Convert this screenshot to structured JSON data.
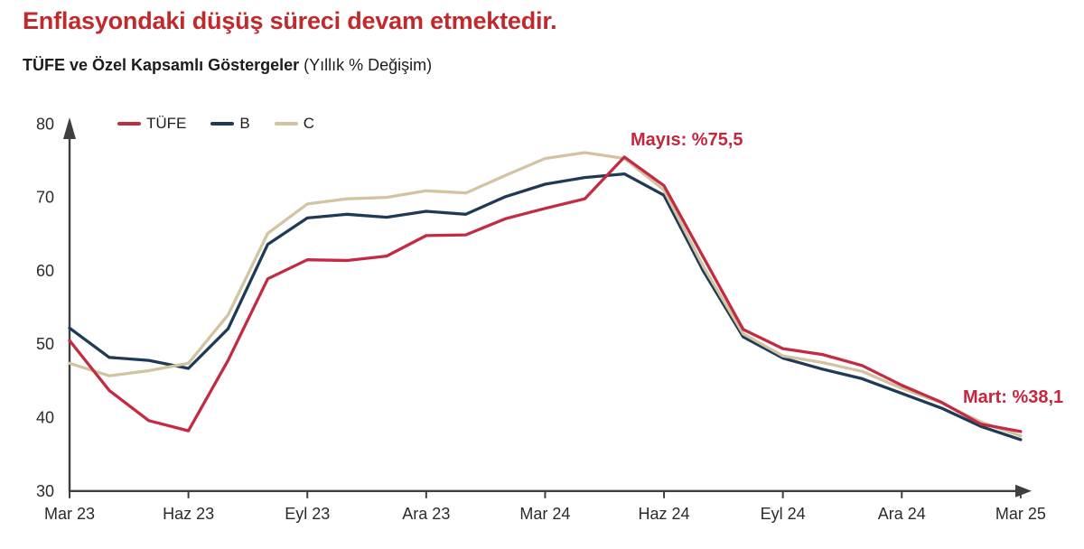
{
  "header": {
    "title": "Enflasyondaki düşüş süreci devam etmektedir.",
    "subtitle_bold": "TÜFE ve Özel Kapsamlı Göstergeler",
    "subtitle_note": " (Yıllık % Değişim)"
  },
  "colors": {
    "title_red": "#c02a2c",
    "annotation_red": "#c4273d",
    "tufe_red": "#c22b42",
    "b_navy": "#1e3a57",
    "c_tan": "#d3c4a1",
    "axis": "#3f3f3f",
    "axis_text": "#2b2b2b"
  },
  "chart_data": {
    "type": "line",
    "title": "TÜFE ve Özel Kapsamlı Göstergeler (Yıllık % Değişim)",
    "n_points": 25,
    "x_tick_positions": [
      0,
      3,
      6,
      9,
      12,
      15,
      18,
      21,
      24
    ],
    "x_tick_labels": [
      "Mar 23",
      "Haz 23",
      "Eyl 23",
      "Ara 23",
      "Mar 24",
      "Haz 24",
      "Eyl 24",
      "Ara 24",
      "Mar 25"
    ],
    "ylim": [
      30,
      80
    ],
    "y_ticks": [
      30,
      40,
      50,
      60,
      70,
      80
    ],
    "grid": false,
    "legend_position": "top-left",
    "series": [
      {
        "name": "TÜFE",
        "color": "#c22b42",
        "values": [
          50.5,
          43.7,
          39.6,
          38.2,
          47.8,
          58.9,
          61.5,
          61.4,
          62.0,
          64.8,
          64.9,
          67.1,
          68.5,
          69.8,
          75.5,
          71.6,
          61.8,
          52.0,
          49.4,
          48.6,
          47.1,
          44.4,
          42.1,
          39.1,
          38.1
        ]
      },
      {
        "name": "B",
        "color": "#1e3a57",
        "values": [
          52.2,
          48.2,
          47.8,
          46.7,
          52.1,
          63.6,
          67.2,
          67.7,
          67.3,
          68.1,
          67.7,
          70.1,
          71.8,
          72.7,
          73.2,
          70.3,
          59.9,
          51.0,
          48.1,
          46.6,
          45.3,
          43.3,
          41.3,
          38.8,
          37.0
        ]
      },
      {
        "name": "C",
        "color": "#d3c4a1",
        "values": [
          47.4,
          45.7,
          46.4,
          47.4,
          54.0,
          65.1,
          69.1,
          69.8,
          70.0,
          70.9,
          70.6,
          73.0,
          75.3,
          76.1,
          75.3,
          71.0,
          60.5,
          51.4,
          48.4,
          47.5,
          46.3,
          44.0,
          42.0,
          39.4,
          37.5
        ]
      }
    ],
    "annotations": [
      {
        "text": "Mayıs: %75,5",
        "series": "TÜFE",
        "point_index": 14,
        "value": 75.5
      },
      {
        "text": "Mart: %38,1",
        "series": "TÜFE",
        "point_index": 24,
        "value": 38.1
      }
    ]
  }
}
